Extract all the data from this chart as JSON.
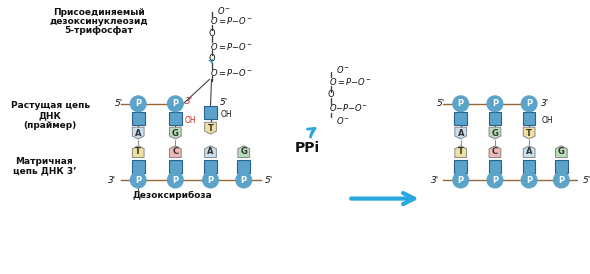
{
  "bg_color": "#ffffff",
  "blue_circle_color": "#5ba3c9",
  "blue_square_color": "#5ba3c9",
  "arrow_color": "#29a8e0",
  "base_colors": {
    "A": "#c8dff0",
    "G": "#b8ddb8",
    "T": "#f0e0a0",
    "C": "#f0b8b8"
  },
  "text_color": "#111111",
  "label_left1": "Присоединяемый",
  "label_left2": "дезоксинуклеозид",
  "label_left3": "5-трифосфат",
  "label_primer1": "Растущая цепь",
  "label_primer2": "ДНК",
  "label_primer3": "(праймер)",
  "label_matrix1": "Матричная",
  "label_matrix2": "цепь ДНК 3’",
  "label_deox": "Дезоксирибоза",
  "label_ppi": "PPi"
}
